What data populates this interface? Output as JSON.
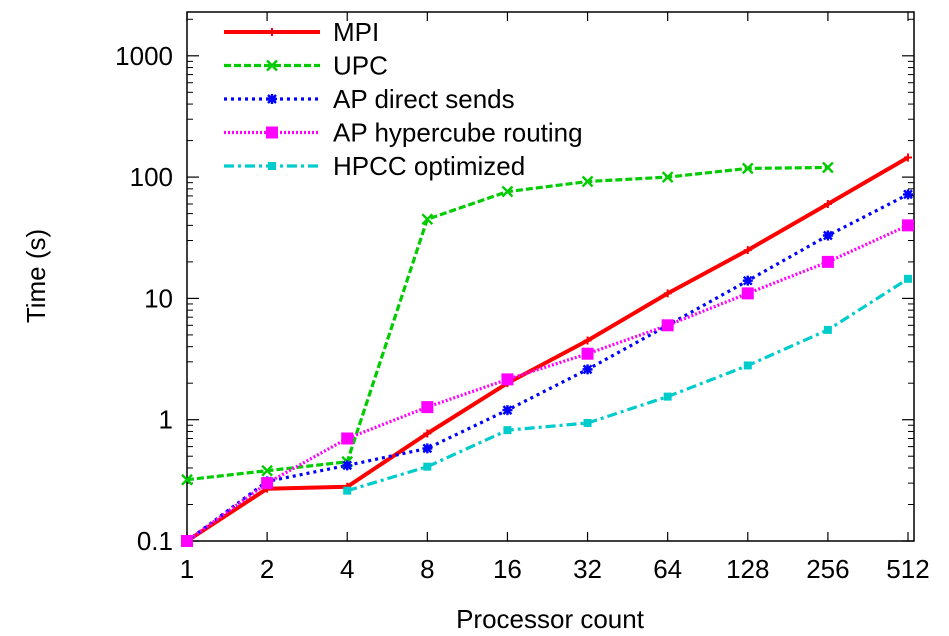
{
  "chart_data": {
    "type": "line",
    "title": "",
    "xlabel": "Processor count",
    "ylabel": "Time (s)",
    "x": [
      1,
      2,
      4,
      8,
      16,
      32,
      64,
      128,
      256,
      512
    ],
    "x_tick_labels": [
      "1",
      "2",
      "4",
      "8",
      "16",
      "32",
      "64",
      "128",
      "256",
      "512"
    ],
    "y_scale": "log",
    "ylim": [
      0.1,
      2500
    ],
    "y_ticks": [
      0.1,
      1,
      10,
      100,
      1000
    ],
    "y_tick_labels": [
      "0.1",
      "1",
      "10",
      "100",
      "1000"
    ],
    "grid": false,
    "legend_position": "top-left",
    "series": [
      {
        "name": "MPI",
        "color": "#ff0000",
        "dash": "solid",
        "marker": "plus",
        "values": [
          0.1,
          0.27,
          0.28,
          0.77,
          2.0,
          4.5,
          11,
          25,
          60,
          145
        ]
      },
      {
        "name": "UPC",
        "color": "#00cc00",
        "dash": "dashed",
        "marker": "cross",
        "values": [
          0.32,
          0.38,
          0.45,
          45,
          76,
          92,
          100,
          118,
          120,
          null
        ]
      },
      {
        "name": "AP direct sends",
        "color": "#0000ff",
        "dash": "dotted",
        "marker": "star",
        "values": [
          0.1,
          0.31,
          0.42,
          0.58,
          1.2,
          2.6,
          6.0,
          14,
          33,
          72
        ]
      },
      {
        "name": "AP hypercube routing",
        "color": "#ff00ff",
        "dash": "dense-dotted",
        "marker": "square",
        "values": [
          0.1,
          0.3,
          0.7,
          1.27,
          2.15,
          3.5,
          6.0,
          11,
          20,
          40
        ]
      },
      {
        "name": "HPCC optimized",
        "color": "#00cccc",
        "dash": "dash-dot",
        "marker": "filled-square-small",
        "values": [
          null,
          null,
          0.26,
          0.41,
          0.82,
          0.94,
          1.55,
          2.8,
          5.5,
          14.5
        ]
      }
    ]
  }
}
